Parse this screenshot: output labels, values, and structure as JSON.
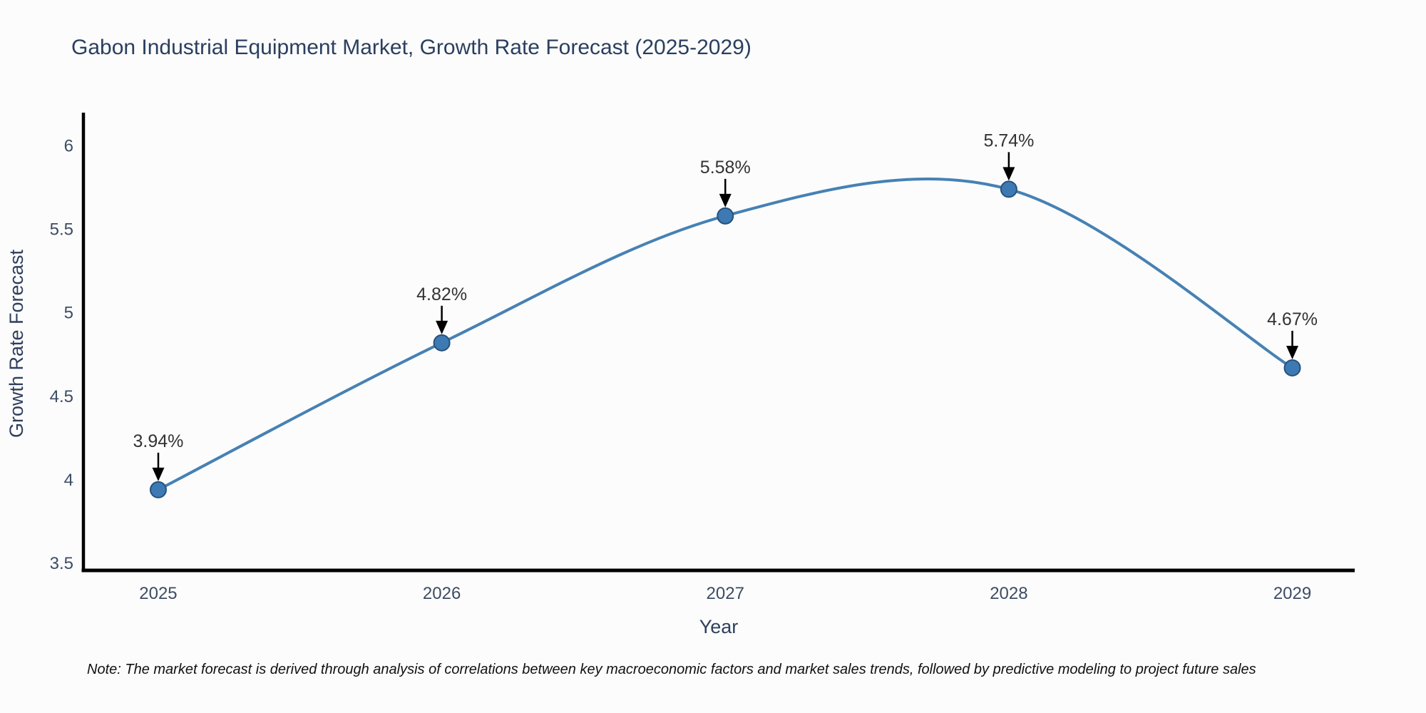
{
  "note": "Note: The market forecast is derived through analysis of correlations between key macroeconomic factors and market sales trends, followed by predictive modeling to project future sales",
  "chart_data": {
    "type": "line",
    "title": "Gabon Industrial Equipment Market, Growth Rate Forecast (2025-2029)",
    "xlabel": "Year",
    "ylabel": "Growth Rate Forecast",
    "x": [
      2025,
      2026,
      2027,
      2028,
      2029
    ],
    "values": [
      3.94,
      4.82,
      5.58,
      5.74,
      4.67
    ],
    "data_labels": [
      "3.94%",
      "4.82%",
      "5.58%",
      "5.74%",
      "4.67%"
    ],
    "x_tick_labels": [
      "2025",
      "2026",
      "2027",
      "2028",
      "2029"
    ],
    "y_ticks": [
      3.5,
      4,
      4.5,
      5,
      5.5,
      6
    ],
    "y_tick_labels": [
      "3.5",
      "4",
      "4.5",
      "5",
      "5.5",
      "6"
    ],
    "xlim": [
      2024.736,
      2029.22
    ],
    "ylim": [
      3.457,
      6.19
    ],
    "line_shape": "spline",
    "grid": false,
    "legend_position": "none",
    "colors": {
      "line": "#4681b4",
      "marker_fill": "#3d7ab3",
      "marker_edge": "#27517c",
      "annotation_arrow": "#000000",
      "annotation_text": "#333333",
      "axis_line": "#000000",
      "tick_label": "#3d4c63",
      "axis_title": "#2e3f5c",
      "title": "#2a3f5f",
      "note_text": "#111111",
      "background": "#fcfcfc"
    }
  }
}
